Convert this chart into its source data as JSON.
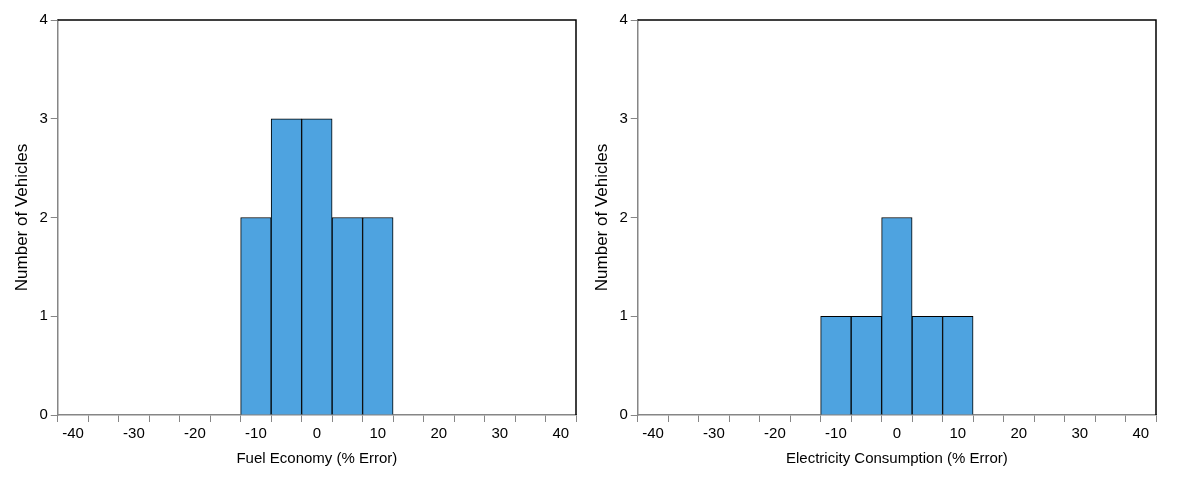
{
  "chart_data": [
    {
      "type": "histogram",
      "bins": [
        -12.5,
        -7.5,
        -2.5,
        2.5,
        7.5,
        12.5
      ],
      "values": [
        2,
        3,
        3,
        2,
        2
      ],
      "color": "#4ea3e0",
      "xlabel": "Fuel Economy (% Error)",
      "ylabel": "Number of Vehicles",
      "xlim": [
        -42.5,
        42.5
      ],
      "xticks": [
        {
          "value": -42.5,
          "label": null
        },
        -40,
        {
          "value": -37.5,
          "label": null
        },
        {
          "value": -32.5,
          "label": null
        },
        -30,
        {
          "value": -27.5,
          "label": null
        },
        {
          "value": -22.5,
          "label": null
        },
        -20,
        {
          "value": -17.5,
          "label": null
        },
        {
          "value": -12.5,
          "label": null
        },
        -10,
        {
          "value": -7.5,
          "label": null
        },
        {
          "value": -2.5,
          "label": null
        },
        0,
        {
          "value": 2.5,
          "label": null
        },
        {
          "value": 7.5,
          "label": null
        },
        10,
        {
          "value": 12.5,
          "label": null
        },
        {
          "value": 17.5,
          "label": null
        },
        20,
        {
          "value": 22.5,
          "label": null
        },
        {
          "value": 27.5,
          "label": null
        },
        30,
        {
          "value": 32.5,
          "label": null
        },
        {
          "value": 37.5,
          "label": null
        },
        40,
        {
          "value": 42.5,
          "label": null
        }
      ],
      "ylim": [
        0,
        4
      ],
      "yticks": [
        0,
        1,
        2,
        3,
        4
      ],
      "grid": false
    },
    {
      "type": "histogram",
      "bins": [
        -12.5,
        -7.5,
        -2.5,
        2.5,
        7.5,
        12.5
      ],
      "values": [
        1,
        1,
        2,
        1,
        1
      ],
      "color": "#4ea3e0",
      "xlabel": "Electricity Consumption (% Error)",
      "ylabel": "Number of Vehicles",
      "xlim": [
        -42.5,
        42.5
      ],
      "xticks": [
        {
          "value": -42.5,
          "label": null
        },
        -40,
        {
          "value": -37.5,
          "label": null
        },
        {
          "value": -32.5,
          "label": null
        },
        -30,
        {
          "value": -27.5,
          "label": null
        },
        {
          "value": -22.5,
          "label": null
        },
        -20,
        {
          "value": -17.5,
          "label": null
        },
        {
          "value": -12.5,
          "label": null
        },
        -10,
        {
          "value": -7.5,
          "label": null
        },
        {
          "value": -2.5,
          "label": null
        },
        0,
        {
          "value": 2.5,
          "label": null
        },
        {
          "value": 7.5,
          "label": null
        },
        10,
        {
          "value": 12.5,
          "label": null
        },
        {
          "value": 17.5,
          "label": null
        },
        20,
        {
          "value": 22.5,
          "label": null
        },
        {
          "value": 27.5,
          "label": null
        },
        30,
        {
          "value": 32.5,
          "label": null
        },
        {
          "value": 37.5,
          "label": null
        },
        40,
        {
          "value": 42.5,
          "label": null
        }
      ],
      "ylim": [
        0,
        4
      ],
      "yticks": [
        0,
        1,
        2,
        3,
        4
      ],
      "grid": false
    }
  ]
}
